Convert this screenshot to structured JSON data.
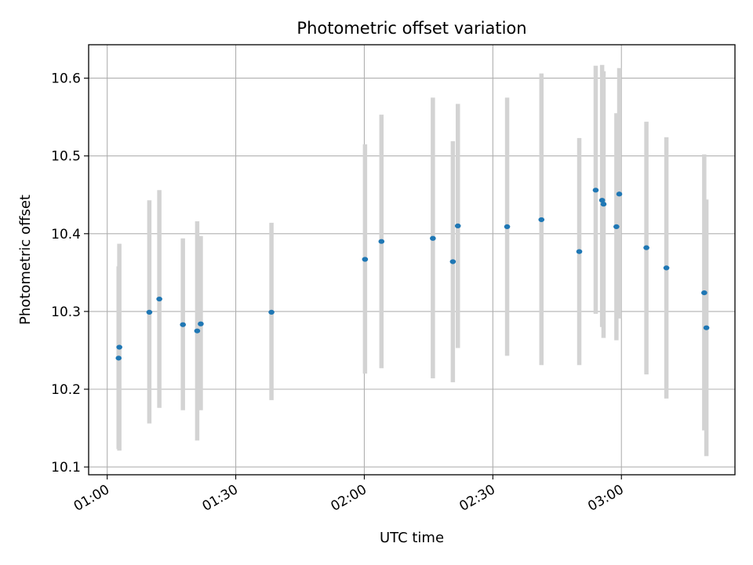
{
  "chart_data": {
    "type": "scatter",
    "title": "Photometric offset variation",
    "xlabel": "UTC time",
    "ylabel": "Photometric offset",
    "x_ticks": [
      "01:00",
      "01:30",
      "02:00",
      "02:30",
      "03:00"
    ],
    "x_tick_minutes": [
      60,
      90,
      120,
      150,
      180
    ],
    "y_ticks": [
      "10.1",
      "10.2",
      "10.3",
      "10.4",
      "10.5",
      "10.6"
    ],
    "y_tick_values": [
      10.1,
      10.2,
      10.3,
      10.4,
      10.5,
      10.6
    ],
    "xlim": [
      "00:55:40",
      "03:26:30"
    ],
    "ylim": [
      10.09,
      10.643
    ],
    "grid": true,
    "marker_color": "#1f77b4",
    "errorbar_color": "#d3d3d3",
    "points": [
      {
        "time": "01:02:40",
        "y": 10.24,
        "low": 10.123,
        "high": 10.358
      },
      {
        "time": "01:02:50",
        "y": 10.254,
        "low": 10.121,
        "high": 10.387
      },
      {
        "time": "01:09:50",
        "y": 10.299,
        "low": 10.156,
        "high": 10.443
      },
      {
        "time": "01:12:10",
        "y": 10.316,
        "low": 10.176,
        "high": 10.456
      },
      {
        "time": "01:17:40",
        "y": 10.283,
        "low": 10.173,
        "high": 10.394
      },
      {
        "time": "01:21:00",
        "y": 10.275,
        "low": 10.134,
        "high": 10.416
      },
      {
        "time": "01:21:50",
        "y": 10.284,
        "low": 10.173,
        "high": 10.397
      },
      {
        "time": "01:38:20",
        "y": 10.299,
        "low": 10.186,
        "high": 10.414
      },
      {
        "time": "02:00:10",
        "y": 10.367,
        "low": 10.22,
        "high": 10.515
      },
      {
        "time": "02:04:00",
        "y": 10.39,
        "low": 10.227,
        "high": 10.553
      },
      {
        "time": "02:16:00",
        "y": 10.394,
        "low": 10.214,
        "high": 10.575
      },
      {
        "time": "02:20:40",
        "y": 10.364,
        "low": 10.209,
        "high": 10.519
      },
      {
        "time": "02:21:50",
        "y": 10.41,
        "low": 10.253,
        "high": 10.567
      },
      {
        "time": "02:33:20",
        "y": 10.409,
        "low": 10.243,
        "high": 10.575
      },
      {
        "time": "02:41:20",
        "y": 10.418,
        "low": 10.231,
        "high": 10.606
      },
      {
        "time": "02:50:10",
        "y": 10.377,
        "low": 10.231,
        "high": 10.523
      },
      {
        "time": "02:54:00",
        "y": 10.456,
        "low": 10.297,
        "high": 10.616
      },
      {
        "time": "02:55:30",
        "y": 10.443,
        "low": 10.28,
        "high": 10.617
      },
      {
        "time": "02:55:50",
        "y": 10.438,
        "low": 10.266,
        "high": 10.609
      },
      {
        "time": "02:58:50",
        "y": 10.409,
        "low": 10.263,
        "high": 10.555
      },
      {
        "time": "02:59:30",
        "y": 10.451,
        "low": 10.291,
        "high": 10.613
      },
      {
        "time": "03:05:50",
        "y": 10.382,
        "low": 10.219,
        "high": 10.544
      },
      {
        "time": "03:10:30",
        "y": 10.356,
        "low": 10.188,
        "high": 10.524
      },
      {
        "time": "03:19:20",
        "y": 10.324,
        "low": 10.147,
        "high": 10.502
      },
      {
        "time": "03:19:50",
        "y": 10.279,
        "low": 10.114,
        "high": 10.444
      }
    ]
  }
}
